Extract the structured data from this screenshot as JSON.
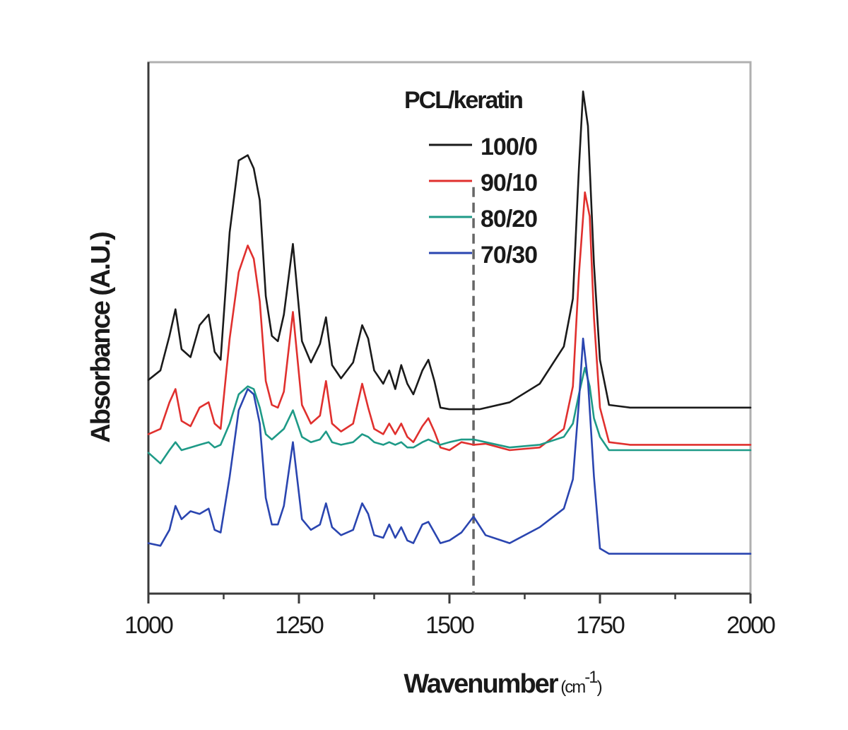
{
  "chart_data": {
    "type": "line",
    "title": "",
    "xlabel": "Wavenumber",
    "xlabel_units_open": " (cm",
    "xlabel_units_sup": "-1",
    "xlabel_units_close": ")",
    "ylabel": "Absorbance (A.U.)",
    "xlim": [
      1000,
      2000
    ],
    "ylim": [
      0,
      100
    ],
    "x_ticks": [
      {
        "value": 1000,
        "label": "1000"
      },
      {
        "value": 1250,
        "label": "1250"
      },
      {
        "value": 1500,
        "label": "1500"
      },
      {
        "value": 1750,
        "label": "1750"
      },
      {
        "value": 2000,
        "label": "2000"
      }
    ],
    "y_ticks_shown": false,
    "grid": false,
    "legend": {
      "title": "PCL/keratin",
      "position": "top-center",
      "entries": [
        "100/0",
        "90/10",
        "80/20",
        "70/30"
      ]
    },
    "annotation": {
      "type": "vertical-dashed-line",
      "x": 1540,
      "color": "#666666"
    },
    "series": [
      {
        "name": "100/0",
        "color": "#1a1a1a",
        "x": [
          1000,
          1020,
          1035,
          1045,
          1055,
          1070,
          1085,
          1100,
          1110,
          1120,
          1135,
          1150,
          1165,
          1175,
          1185,
          1195,
          1205,
          1215,
          1225,
          1240,
          1255,
          1270,
          1285,
          1295,
          1305,
          1320,
          1340,
          1355,
          1365,
          1375,
          1390,
          1400,
          1410,
          1420,
          1430,
          1440,
          1455,
          1465,
          1475,
          1485,
          1500,
          1550,
          1600,
          1650,
          1690,
          1705,
          1715,
          1722,
          1730,
          1740,
          1750,
          1765,
          1800,
          2000
        ],
        "y": [
          40.2,
          42.0,
          48.5,
          53.5,
          46.0,
          44.5,
          50.5,
          52.5,
          45.5,
          44.0,
          68.0,
          81.5,
          82.5,
          80.0,
          74.0,
          56.0,
          48.5,
          47.5,
          52.5,
          65.8,
          47.5,
          43.5,
          47.0,
          52.0,
          43.0,
          40.5,
          43.5,
          50.5,
          48.0,
          42.0,
          39.5,
          42.0,
          38.5,
          43.0,
          39.5,
          37.5,
          42.0,
          44.0,
          40.0,
          35.0,
          34.7,
          34.7,
          36.0,
          39.5,
          46.5,
          55.5,
          80.0,
          94.5,
          88.0,
          62.0,
          44.0,
          35.5,
          35.0,
          35.0
        ]
      },
      {
        "name": "90/10",
        "color": "#e0302e",
        "x": [
          1000,
          1020,
          1035,
          1045,
          1055,
          1070,
          1085,
          1100,
          1110,
          1120,
          1135,
          1150,
          1165,
          1175,
          1185,
          1195,
          1205,
          1215,
          1225,
          1240,
          1255,
          1270,
          1285,
          1295,
          1305,
          1320,
          1340,
          1355,
          1365,
          1375,
          1390,
          1400,
          1410,
          1420,
          1430,
          1440,
          1455,
          1465,
          1475,
          1485,
          1500,
          1520,
          1540,
          1560,
          1600,
          1650,
          1690,
          1705,
          1715,
          1725,
          1733,
          1740,
          1750,
          1765,
          1800,
          2000
        ],
        "y": [
          30.0,
          31.0,
          36.0,
          38.5,
          32.5,
          31.5,
          35.0,
          36.0,
          32.0,
          31.0,
          48.0,
          60.5,
          65.5,
          63.0,
          55.0,
          40.0,
          35.5,
          35.0,
          38.0,
          53.0,
          35.5,
          32.0,
          33.5,
          40.0,
          32.0,
          30.5,
          32.0,
          39.5,
          35.0,
          31.0,
          30.0,
          32.0,
          30.0,
          32.0,
          29.5,
          28.5,
          31.5,
          33.0,
          30.5,
          27.5,
          27.0,
          28.5,
          28.0,
          28.2,
          27.0,
          27.5,
          31.0,
          39.0,
          60.0,
          75.5,
          71.0,
          52.0,
          35.0,
          28.5,
          28.0,
          28.0
        ]
      },
      {
        "name": "80/20",
        "color": "#1e9a87",
        "x": [
          1000,
          1020,
          1035,
          1045,
          1055,
          1070,
          1085,
          1100,
          1110,
          1120,
          1135,
          1150,
          1165,
          1175,
          1185,
          1195,
          1205,
          1215,
          1225,
          1240,
          1255,
          1270,
          1285,
          1295,
          1305,
          1320,
          1340,
          1355,
          1365,
          1375,
          1390,
          1400,
          1410,
          1420,
          1430,
          1440,
          1455,
          1465,
          1475,
          1485,
          1500,
          1520,
          1540,
          1560,
          1600,
          1650,
          1690,
          1705,
          1715,
          1725,
          1733,
          1740,
          1750,
          1765,
          1800,
          2000
        ],
        "y": [
          26.5,
          24.5,
          27.0,
          28.5,
          27.0,
          27.5,
          28.0,
          28.5,
          27.5,
          28.0,
          32.0,
          37.5,
          39.0,
          38.5,
          35.0,
          30.0,
          29.0,
          30.0,
          31.0,
          34.5,
          29.5,
          28.5,
          29.0,
          30.5,
          28.5,
          28.0,
          28.5,
          30.0,
          29.5,
          28.5,
          28.0,
          28.5,
          28.0,
          28.5,
          27.5,
          27.5,
          28.5,
          29.0,
          28.5,
          28.0,
          28.5,
          29.0,
          29.0,
          28.5,
          27.5,
          28.0,
          29.5,
          32.0,
          37.5,
          42.5,
          39.0,
          33.0,
          29.5,
          27.0,
          27.0,
          27.0
        ]
      },
      {
        "name": "70/30",
        "color": "#2a45b0",
        "x": [
          1000,
          1020,
          1035,
          1045,
          1055,
          1070,
          1085,
          1100,
          1110,
          1120,
          1135,
          1150,
          1165,
          1175,
          1185,
          1195,
          1205,
          1215,
          1225,
          1240,
          1255,
          1270,
          1285,
          1295,
          1305,
          1320,
          1340,
          1355,
          1365,
          1375,
          1390,
          1400,
          1410,
          1420,
          1430,
          1440,
          1455,
          1465,
          1475,
          1485,
          1500,
          1520,
          1540,
          1560,
          1600,
          1650,
          1690,
          1705,
          1715,
          1722,
          1730,
          1740,
          1750,
          1765,
          1800,
          2000
        ],
        "y": [
          9.5,
          9.0,
          12.0,
          16.5,
          14.0,
          15.5,
          15.0,
          16.0,
          12.0,
          11.5,
          22.0,
          34.5,
          38.5,
          37.5,
          32.0,
          18.0,
          13.0,
          13.0,
          16.5,
          28.5,
          14.0,
          12.0,
          13.0,
          17.0,
          12.5,
          11.0,
          12.0,
          17.0,
          15.0,
          11.0,
          10.5,
          13.0,
          10.5,
          12.5,
          10.0,
          9.5,
          13.0,
          13.5,
          11.5,
          9.5,
          10.0,
          11.5,
          14.5,
          11.0,
          9.5,
          12.5,
          16.0,
          21.5,
          36.0,
          48.0,
          40.0,
          22.0,
          8.5,
          7.5,
          7.5,
          7.5
        ]
      }
    ]
  }
}
